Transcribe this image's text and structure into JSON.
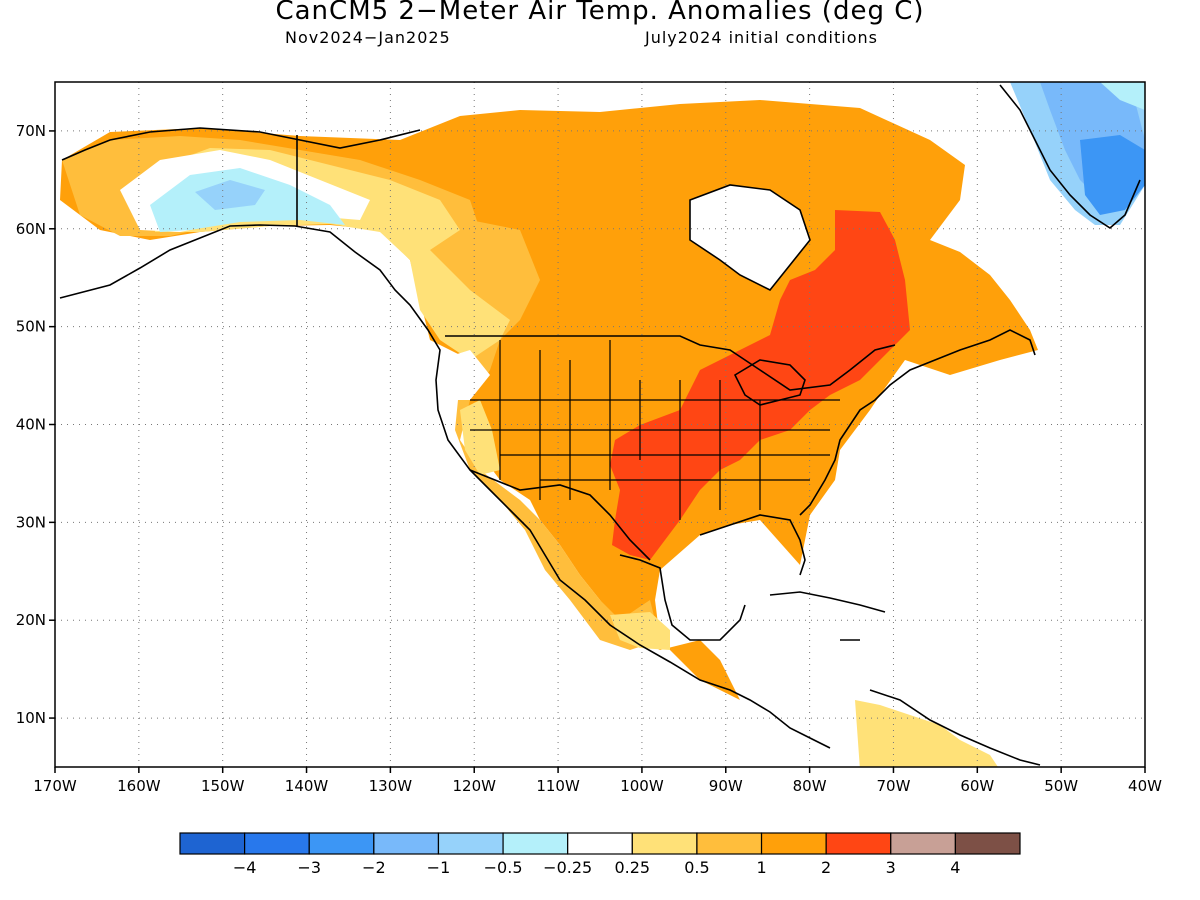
{
  "title": "CanCM5 2−Meter Air Temp. Anomalies (deg C)",
  "subtitle_left": "Nov2024−Jan2025",
  "subtitle_right": "July2024 initial conditions",
  "map": {
    "lon_range": [
      -170,
      -40
    ],
    "lat_range": [
      5,
      75
    ],
    "lon_ticks": [
      {
        "value": -170,
        "label": "170W"
      },
      {
        "value": -160,
        "label": "160W"
      },
      {
        "value": -150,
        "label": "150W"
      },
      {
        "value": -140,
        "label": "140W"
      },
      {
        "value": -130,
        "label": "130W"
      },
      {
        "value": -120,
        "label": "120W"
      },
      {
        "value": -110,
        "label": "110W"
      },
      {
        "value": -100,
        "label": "100W"
      },
      {
        "value": -90,
        "label": "90W"
      },
      {
        "value": -80,
        "label": "80W"
      },
      {
        "value": -70,
        "label": "70W"
      },
      {
        "value": -60,
        "label": "60W"
      },
      {
        "value": -50,
        "label": "50W"
      },
      {
        "value": -40,
        "label": "40W"
      }
    ],
    "lat_ticks": [
      {
        "value": 10,
        "label": "10N"
      },
      {
        "value": 20,
        "label": "20N"
      },
      {
        "value": 30,
        "label": "30N"
      },
      {
        "value": 40,
        "label": "40N"
      },
      {
        "value": 50,
        "label": "50N"
      },
      {
        "value": 60,
        "label": "60N"
      },
      {
        "value": 70,
        "label": "70N"
      }
    ],
    "grid": true
  },
  "colorbar": {
    "colors": [
      "#1e64d2",
      "#2878ec",
      "#3c96f5",
      "#78b9fa",
      "#96d2fa",
      "#b4f0fa",
      "#ffffff",
      "#ffe178",
      "#ffbe3c",
      "#ffa00a",
      "#ff4614",
      "#c8a096",
      "#7d5046"
    ],
    "labels": [
      "−4",
      "−3",
      "−2",
      "−1",
      "−0.5",
      "−0.25",
      "0.25",
      "0.5",
      "1",
      "2",
      "3",
      "4"
    ]
  },
  "colors": {
    "neg_025": "#b4f0fa",
    "neg_05": "#96d2fa",
    "neg_1": "#78b9fa",
    "neg_2": "#3c96f5",
    "pos_025": "#ffe178",
    "pos_05": "#ffbe3c",
    "pos_1": "#ffa00a",
    "pos_2": "#ff4614"
  }
}
